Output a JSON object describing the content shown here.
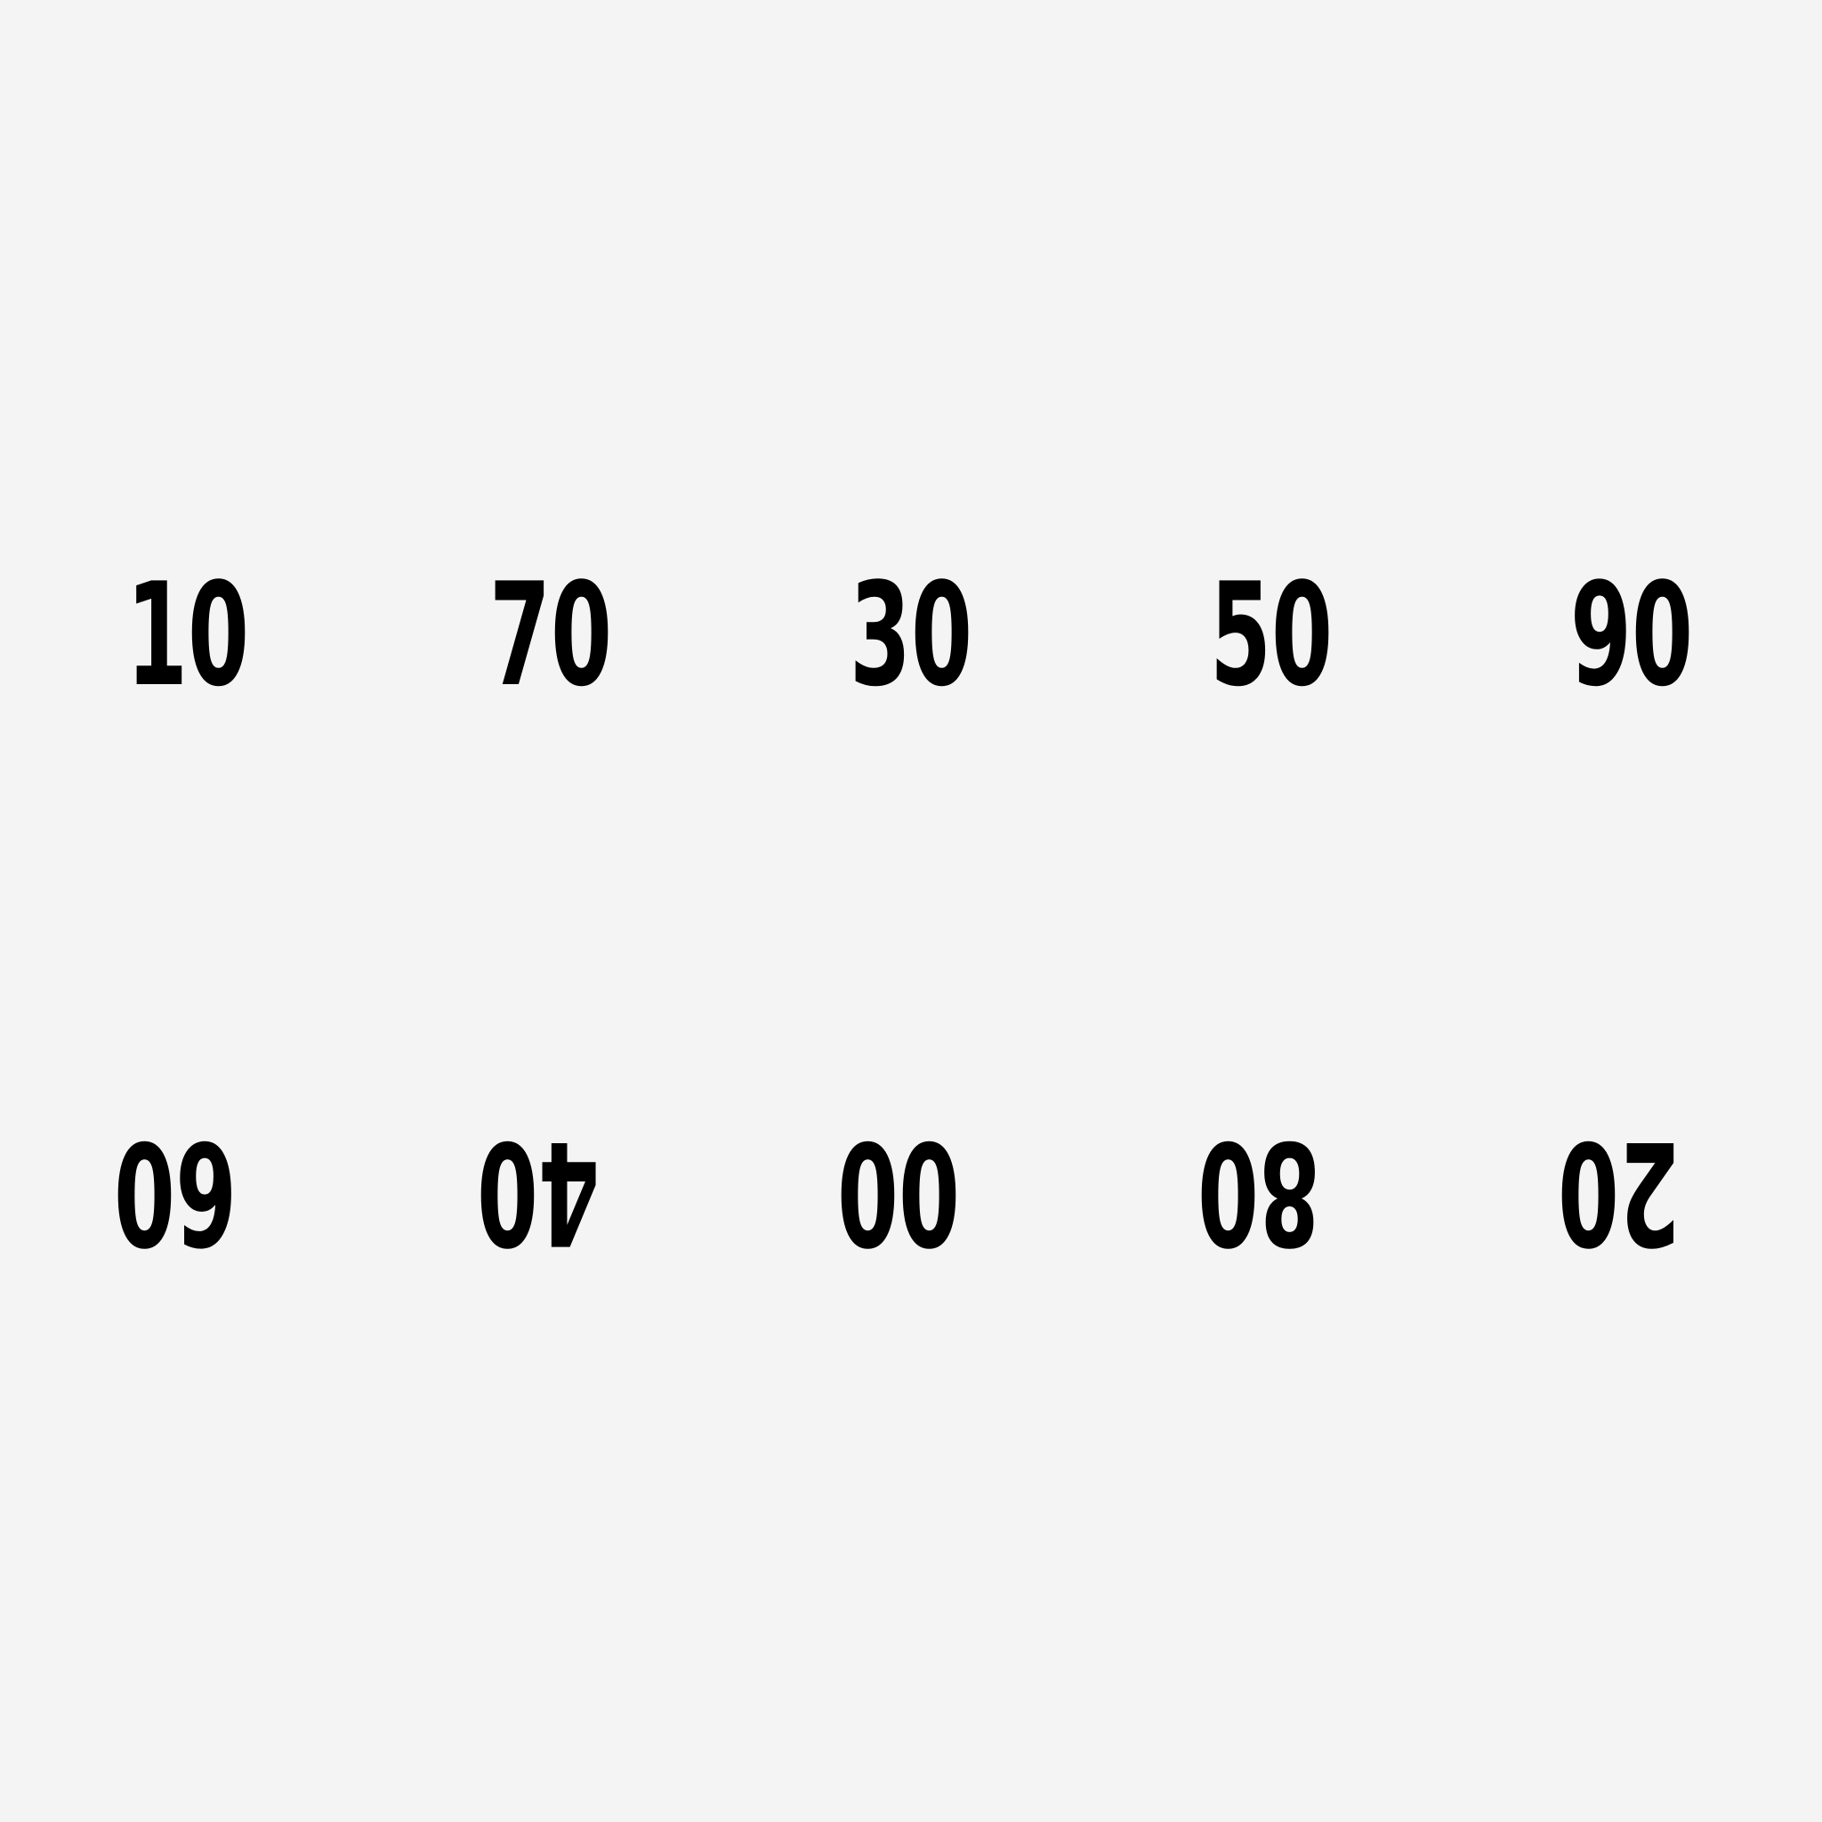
{
  "top_row": {
    "items": [
      "10",
      "70",
      "30",
      "50",
      "90"
    ]
  },
  "bottom_row": {
    "items": [
      "60",
      "40",
      "00",
      "80",
      "20"
    ],
    "orientation": "upside-down"
  },
  "colors": {
    "background": "#f4f4f4",
    "text": "#000000"
  }
}
